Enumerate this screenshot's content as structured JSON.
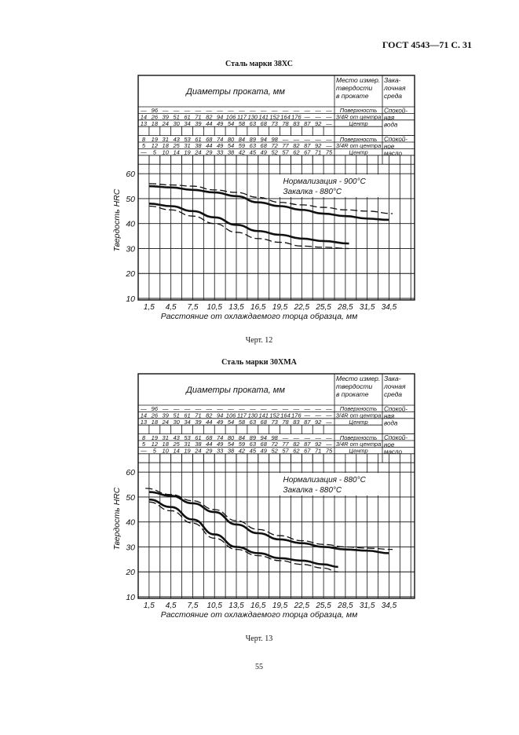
{
  "header": {
    "doc_ref": "ГОСТ 4543—71 С. 31"
  },
  "page_number": "55",
  "table_headers": {
    "diameters": "Диаметры проката, мм",
    "place": [
      "Место измер.",
      "твердости",
      "в прокате"
    ],
    "medium": [
      "Зака-",
      "лочная",
      "среда"
    ]
  },
  "places": [
    "Поверхность",
    "3/4R от центра",
    "Центр"
  ],
  "media": {
    "water": [
      "Спокой-",
      "ная",
      "вода"
    ],
    "oil": [
      "Спокой-",
      "ное",
      "масло"
    ]
  },
  "charts": [
    {
      "title": "Сталь марки 38ХС",
      "caption": "Черт. 12",
      "legend": [
        "Нормализация - 900°C",
        "Закалка         - 880°C"
      ],
      "water_rows": [
        [
          "—",
          "96",
          "—",
          "—",
          "—",
          "—",
          "—",
          "—",
          "—",
          "—",
          "—",
          "—",
          "—",
          "—",
          "—",
          "—",
          "—",
          "—"
        ],
        [
          "14",
          "26",
          "39",
          "51",
          "61",
          "71",
          "82",
          "94",
          "106",
          "117",
          "130",
          "141",
          "152",
          "164",
          "176",
          "—",
          "—",
          "—"
        ],
        [
          "13",
          "18",
          "24",
          "30",
          "34",
          "39",
          "44",
          "49",
          "54",
          "58",
          "63",
          "68",
          "73",
          "78",
          "83",
          "87",
          "92",
          "—"
        ]
      ],
      "oil_rows": [
        [
          "8",
          "19",
          "31",
          "43",
          "53",
          "61",
          "68",
          "74",
          "80",
          "84",
          "89",
          "94",
          "98",
          "—",
          "—",
          "—",
          "—",
          "—"
        ],
        [
          "5",
          "12",
          "18",
          "25",
          "31",
          "38",
          "44",
          "49",
          "54",
          "59",
          "63",
          "68",
          "72",
          "77",
          "82",
          "87",
          "92",
          "—"
        ],
        [
          "—",
          "5",
          "10",
          "14",
          "19",
          "24",
          "29",
          "33",
          "38",
          "42",
          "45",
          "49",
          "52",
          "57",
          "62",
          "67",
          "71",
          "75"
        ]
      ]
    },
    {
      "title": "Сталь марки 30ХМА",
      "caption": "Черт. 13",
      "legend": [
        "Нормализация - 880°C",
        "Закалка         - 880°C"
      ],
      "water_rows": [
        [
          "—",
          "96",
          "—",
          "—",
          "—",
          "—",
          "—",
          "—",
          "—",
          "—",
          "—",
          "—",
          "—",
          "—",
          "—",
          "—",
          "—",
          "—"
        ],
        [
          "14",
          "26",
          "39",
          "51",
          "61",
          "71",
          "82",
          "94",
          "106",
          "117",
          "130",
          "141",
          "152",
          "164",
          "176",
          "—",
          "—",
          "—"
        ],
        [
          "13",
          "18",
          "24",
          "30",
          "34",
          "39",
          "44",
          "49",
          "54",
          "58",
          "63",
          "68",
          "73",
          "78",
          "83",
          "87",
          "92",
          "—"
        ]
      ],
      "oil_rows": [
        [
          "8",
          "19",
          "31",
          "43",
          "53",
          "61",
          "68",
          "74",
          "80",
          "84",
          "89",
          "94",
          "98",
          "—",
          "—",
          "—",
          "—",
          "—"
        ],
        [
          "5",
          "12",
          "18",
          "25",
          "31",
          "38",
          "44",
          "49",
          "54",
          "59",
          "63",
          "68",
          "72",
          "77",
          "82",
          "87",
          "92",
          "—"
        ],
        [
          "—",
          "5",
          "10",
          "14",
          "19",
          "24",
          "29",
          "33",
          "38",
          "42",
          "45",
          "49",
          "52",
          "57",
          "62",
          "67",
          "71",
          "75"
        ]
      ]
    }
  ],
  "chart_data": [
    {
      "type": "line",
      "ylabel": "Твердость HRC",
      "xlabel": "Расстояние от охлаждаемого торца образца, мм",
      "ylim": [
        10,
        60
      ],
      "y_ticks": [
        "60",
        "50",
        "40",
        "30",
        "20",
        "10"
      ],
      "x_ticks": [
        "1,5",
        "4,5",
        "7,5",
        "10,5",
        "13,5",
        "16,5",
        "19,5",
        "22,5",
        "25,5",
        "28,5",
        "31,5",
        "34,5"
      ],
      "grid": true,
      "series": [
        {
          "style": "solid",
          "points": [
            [
              1.5,
              55
            ],
            [
              4.5,
              54.5
            ],
            [
              7.5,
              53.5
            ],
            [
              10.5,
              52.5
            ],
            [
              13.5,
              51
            ],
            [
              16.5,
              48.5
            ],
            [
              19.5,
              47
            ],
            [
              22.5,
              45.5
            ],
            [
              25.5,
              44
            ],
            [
              28.5,
              43
            ],
            [
              31.5,
              42
            ],
            [
              34.5,
              41.5
            ]
          ]
        },
        {
          "style": "dashed",
          "points": [
            [
              1.5,
              56
            ],
            [
              4.5,
              55.5
            ],
            [
              7.5,
              55
            ],
            [
              10.5,
              53.5
            ],
            [
              13.5,
              52.5
            ],
            [
              16.5,
              50.5
            ],
            [
              19.5,
              48.5
            ],
            [
              22.5,
              47.5
            ],
            [
              25.5,
              46.5
            ],
            [
              28.5,
              45.5
            ],
            [
              31.5,
              45
            ],
            [
              35,
              44
            ]
          ]
        },
        {
          "style": "solid",
          "points": [
            [
              1.5,
              48
            ],
            [
              4.5,
              47
            ],
            [
              7.5,
              45
            ],
            [
              10.5,
              42.5
            ],
            [
              13.5,
              39.5
            ],
            [
              16.5,
              37
            ],
            [
              19.5,
              35.5
            ],
            [
              22.5,
              34
            ],
            [
              25.5,
              33
            ],
            [
              29,
              32
            ]
          ]
        },
        {
          "style": "dashed",
          "points": [
            [
              1.5,
              47
            ],
            [
              4.5,
              45.5
            ],
            [
              7.5,
              43
            ],
            [
              10.5,
              40
            ],
            [
              13.5,
              36.5
            ],
            [
              16.5,
              34
            ],
            [
              19.5,
              32.5
            ],
            [
              22.5,
              31
            ],
            [
              25.5,
              30.5
            ],
            [
              29,
              30
            ]
          ]
        }
      ]
    },
    {
      "type": "line",
      "ylabel": "Твердость HRC",
      "xlabel": "Расстояние от охлаждаемого торца образца, мм",
      "ylim": [
        10,
        60
      ],
      "y_ticks": [
        "60",
        "50",
        "40",
        "30",
        "20",
        "10"
      ],
      "x_ticks": [
        "1,5",
        "4,5",
        "7,5",
        "10,5",
        "13,5",
        "16,5",
        "19,5",
        "22,5",
        "25,5",
        "28,5",
        "31,5",
        "34,5"
      ],
      "grid": true,
      "series": [
        {
          "style": "solid",
          "points": [
            [
              1.5,
              52
            ],
            [
              4.5,
              50.5
            ],
            [
              7.5,
              47.5
            ],
            [
              10.5,
              44
            ],
            [
              13.5,
              39
            ],
            [
              16.5,
              35.5
            ],
            [
              19.5,
              33
            ],
            [
              22.5,
              31.5
            ],
            [
              25.5,
              30
            ],
            [
              28.5,
              29
            ],
            [
              31.5,
              28.5
            ],
            [
              34.5,
              27.5
            ]
          ]
        },
        {
          "style": "dashed",
          "points": [
            [
              1,
              53.5
            ],
            [
              4.5,
              51
            ],
            [
              7.5,
              48.5
            ],
            [
              10.5,
              45
            ],
            [
              13.5,
              40.5
            ],
            [
              16.5,
              37
            ],
            [
              19.5,
              34.5
            ],
            [
              22.5,
              32.5
            ],
            [
              25.5,
              31
            ],
            [
              28.5,
              30
            ],
            [
              31.5,
              29.5
            ],
            [
              35,
              29
            ]
          ]
        },
        {
          "style": "solid",
          "points": [
            [
              1.5,
              49
            ],
            [
              4.5,
              46
            ],
            [
              7.5,
              41
            ],
            [
              10.5,
              35
            ],
            [
              13.5,
              30
            ],
            [
              16.5,
              27.5
            ],
            [
              19.5,
              25.5
            ],
            [
              22.5,
              24.5
            ],
            [
              25.5,
              23
            ],
            [
              27.5,
              22
            ]
          ]
        },
        {
          "style": "dashed",
          "points": [
            [
              1.5,
              48
            ],
            [
              4.5,
              44.5
            ],
            [
              7.5,
              39.5
            ],
            [
              10.5,
              33.5
            ],
            [
              13.5,
              29
            ],
            [
              16.5,
              26.5
            ],
            [
              19.5,
              24.5
            ],
            [
              22.5,
              23
            ],
            [
              25.5,
              21.5
            ],
            [
              27.5,
              20
            ]
          ]
        }
      ]
    }
  ]
}
